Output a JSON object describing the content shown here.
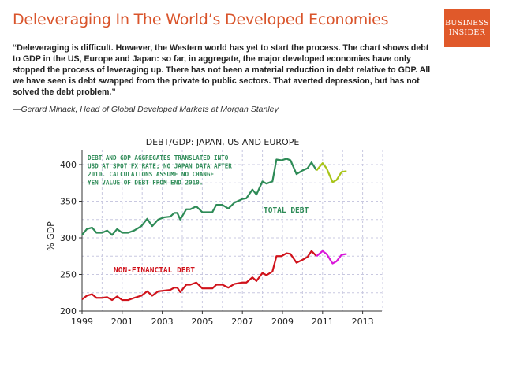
{
  "header": {
    "title": "Deleveraging In The World’s Developed Economies",
    "quote": "“Deleveraging is difficult. However, the Western world has yet to start the process. The chart shows debt to GDP in the US, Europe and Japan: so far, in aggregate, the major developed economies have only stopped the process of leveraging up. There has not been a material reduction in debt relative to GDP. All we have seen is debt swapped from the private to public sectors. That averted depression, but has not solved the debt problem.”",
    "attribution": "—Gerard Minack, Head of Global Developed Markets at Morgan Stanley"
  },
  "logo": {
    "line1": "BUSINESS",
    "line2": "INSIDER",
    "color": "#e0592a"
  },
  "chart_data": {
    "type": "line",
    "title": "DEBT/GDP: JAPAN, US AND EUROPE",
    "ylabel": "% GDP",
    "xlabel": "",
    "xlim": [
      1999,
      2014
    ],
    "ylim": [
      200,
      420
    ],
    "x_ticks": [
      "1999",
      "2001",
      "2003",
      "2005",
      "2007",
      "2009",
      "2011",
      "2013"
    ],
    "y_ticks": [
      "200",
      "250",
      "300",
      "350",
      "400"
    ],
    "grid": true,
    "note_lines": [
      "DEBT AND GDP AGGREGATES TRANSLATED INTO",
      "USD AT SPOT FX RATE;  NO JAPAN DATA AFTER",
      "2010.  CALCULATIONS ASSUME NO CHANGE",
      "YEN VALUE OF DEBT FROM END 2010."
    ],
    "series": [
      {
        "name": "TOTAL DEBT",
        "color": "#2e8b57",
        "projection_color": "#a8c418",
        "x": [
          1999.0,
          1999.24,
          1999.5,
          1999.72,
          2000.0,
          2000.25,
          2000.5,
          2000.75,
          2001.0,
          2001.3,
          2001.6,
          2001.96,
          2002.25,
          2002.5,
          2002.8,
          2003.1,
          2003.4,
          2003.6,
          2003.75,
          2003.9,
          2004.2,
          2004.4,
          2004.7,
          2005.0,
          2005.5,
          2005.7,
          2006.0,
          2006.3,
          2006.6,
          2007.0,
          2007.2,
          2007.5,
          2007.7,
          2008.0,
          2008.2,
          2008.5,
          2008.7,
          2008.95,
          2009.2,
          2009.4,
          2009.7,
          2010.0,
          2010.25,
          2010.45,
          2010.7
        ],
        "values": [
          304,
          312,
          314,
          307,
          307,
          310,
          304,
          312,
          307,
          307,
          310,
          316,
          326,
          316,
          325,
          328,
          329,
          334,
          334,
          325,
          339,
          339,
          343,
          335,
          335,
          345,
          345,
          340,
          348,
          353,
          354,
          366,
          359,
          377,
          374,
          377,
          407,
          406,
          408,
          406,
          387,
          392,
          395,
          403,
          392
        ],
        "projection_x": [
          2010.7,
          2011.0,
          2011.2,
          2011.5,
          2011.7,
          2011.95,
          2012.2
        ],
        "projection_values": [
          392,
          402,
          395,
          376,
          379,
          390,
          391
        ]
      },
      {
        "name": "NON-FINANCIAL DEBT",
        "color": "#d0121b",
        "projection_color": "#d916d9",
        "x": [
          1999.0,
          1999.24,
          1999.5,
          1999.72,
          2000.0,
          2000.25,
          2000.5,
          2000.75,
          2001.0,
          2001.3,
          2001.6,
          2001.96,
          2002.25,
          2002.5,
          2002.8,
          2003.1,
          2003.4,
          2003.6,
          2003.75,
          2003.9,
          2004.2,
          2004.4,
          2004.7,
          2005.0,
          2005.5,
          2005.7,
          2006.0,
          2006.3,
          2006.6,
          2007.0,
          2007.2,
          2007.5,
          2007.7,
          2008.0,
          2008.2,
          2008.5,
          2008.7,
          2008.95,
          2009.2,
          2009.4,
          2009.7,
          2010.0,
          2010.25,
          2010.45,
          2010.7
        ],
        "values": [
          216,
          221,
          223,
          218,
          218,
          219,
          215,
          220,
          215,
          215,
          218,
          221,
          227,
          221,
          227,
          228,
          229,
          232,
          232,
          226,
          236,
          236,
          239,
          231,
          231,
          236,
          236,
          232,
          237,
          239,
          239,
          246,
          241,
          252,
          249,
          254,
          275,
          275,
          279,
          278,
          266,
          270,
          274,
          282,
          275
        ],
        "projection_x": [
          2010.7,
          2011.0,
          2011.2,
          2011.5,
          2011.7,
          2011.95,
          2012.2
        ],
        "projection_values": [
          275,
          282,
          278,
          265,
          268,
          277,
          278
        ]
      }
    ]
  }
}
